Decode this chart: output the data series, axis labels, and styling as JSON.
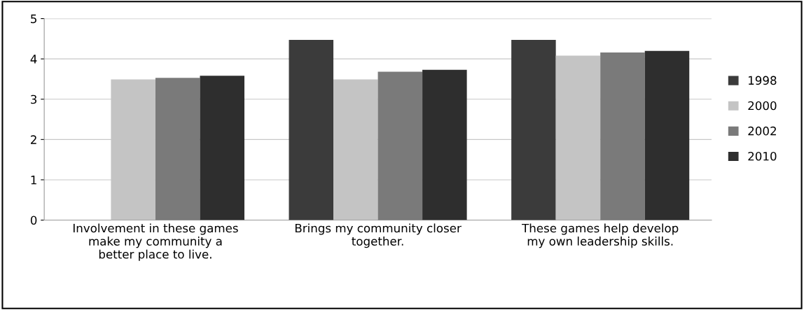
{
  "chart_data": {
    "type": "bar",
    "categories": [
      "Involvement in these games\nmake my community a\nbetter place to live.",
      "Brings my community closer\ntogether.",
      "These games help develop\nmy own leadership skills."
    ],
    "series": [
      {
        "name": "1998",
        "color": "#3b3b3b",
        "values": [
          null,
          4.47,
          4.47
        ]
      },
      {
        "name": "2000",
        "color": "#c4c4c4",
        "values": [
          3.49,
          3.49,
          4.08
        ]
      },
      {
        "name": "2002",
        "color": "#7a7a7a",
        "values": [
          3.53,
          3.68,
          4.16
        ]
      },
      {
        "name": "2010",
        "color": "#2e2e2e",
        "values": [
          3.58,
          3.73,
          4.2
        ]
      }
    ],
    "ylim": [
      0,
      5
    ],
    "yticks": [
      0,
      1,
      2,
      3,
      4,
      5
    ],
    "grid": "y",
    "legend": "right"
  }
}
